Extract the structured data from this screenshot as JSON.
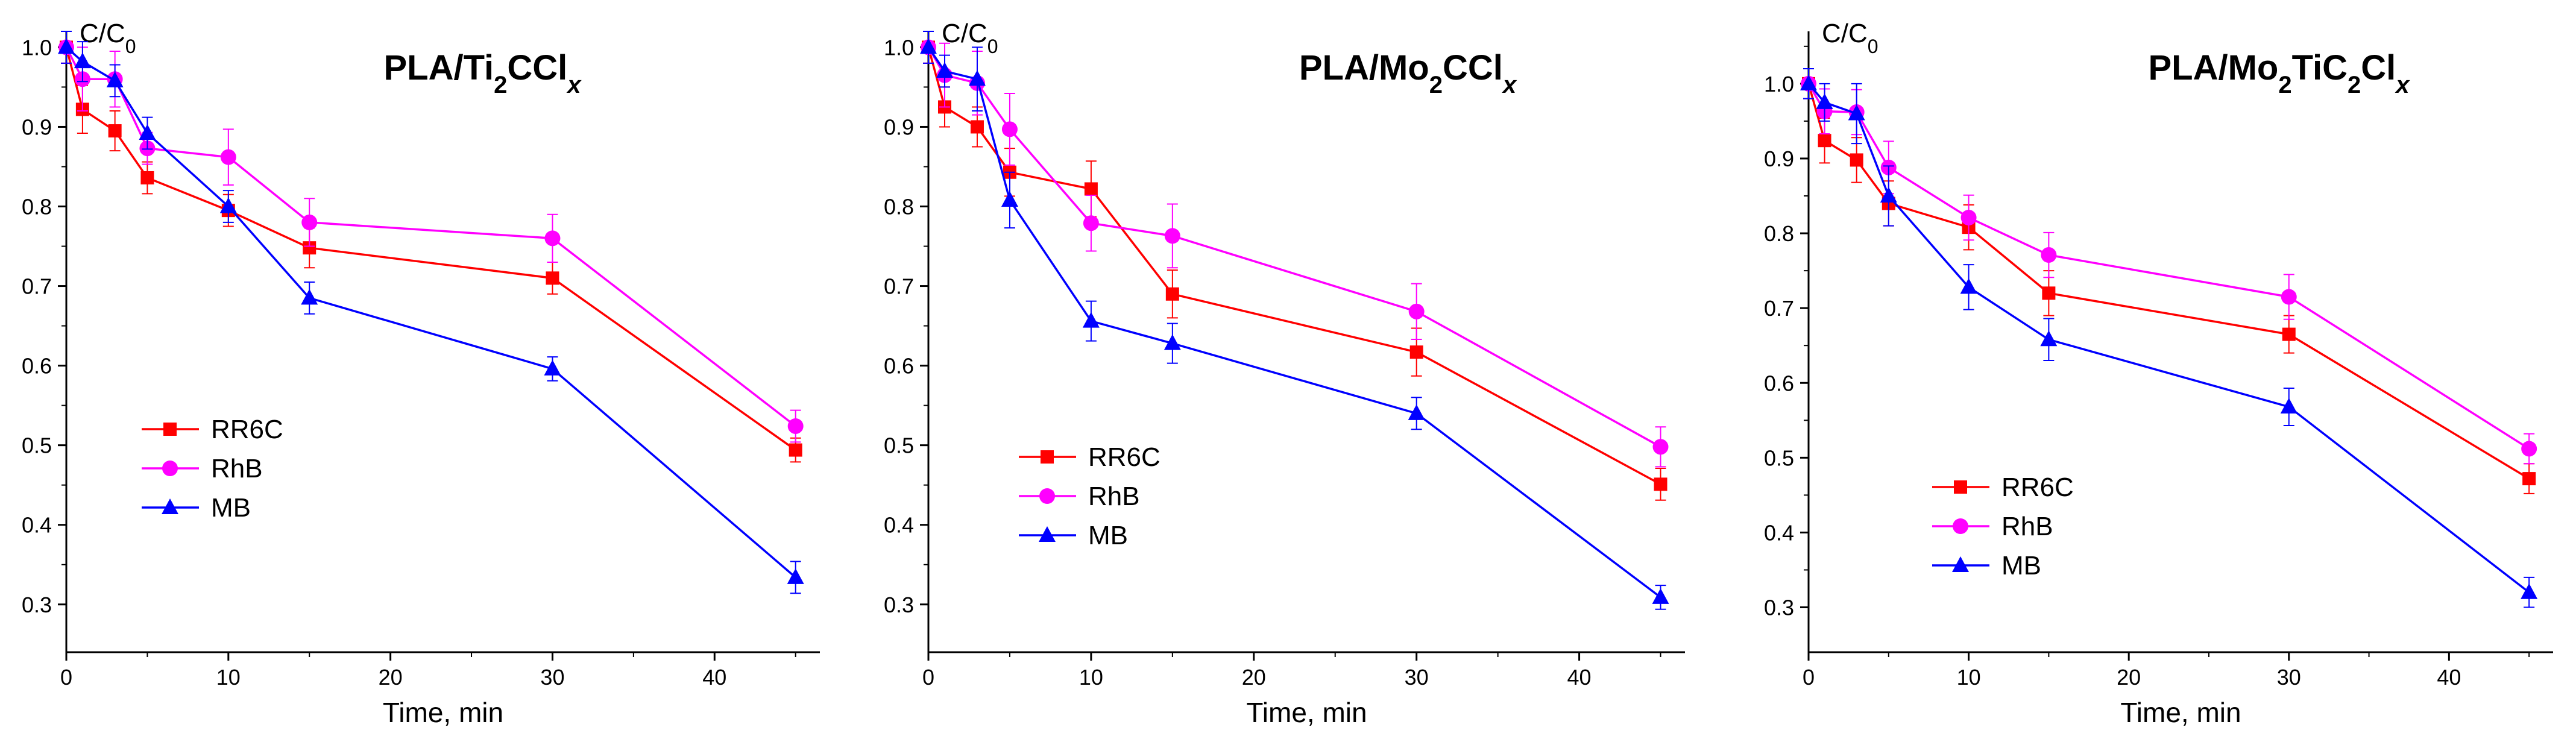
{
  "colors": {
    "RR6C": "#ff0000",
    "RhB": "#ff00ff",
    "MB": "#0000ff",
    "axis": "#000000"
  },
  "chart_data": [
    {
      "type": "line",
      "title": {
        "main": "PLA/Ti",
        "sub1": "2",
        "mid": "CCl",
        "italic": "x"
      },
      "ylabel": {
        "main": "C/C",
        "sub": "0"
      },
      "xlabel": "Time, min",
      "xlim": [
        0,
        46.5
      ],
      "ylim": [
        0.24,
        1.02
      ],
      "xticks": [
        0,
        10,
        20,
        30,
        40
      ],
      "yticks": [
        0.3,
        0.4,
        0.5,
        0.6,
        0.7,
        0.8,
        0.9,
        1.0
      ],
      "ytick_labels": [
        "0.3",
        "0.4",
        "0.5",
        "0.6",
        "0.7",
        "0.8",
        "0.9",
        "1.0"
      ],
      "legend_position": "lower-left",
      "x": [
        0,
        1,
        3,
        5,
        10,
        15,
        30,
        45
      ],
      "series": [
        {
          "name": "RR6C",
          "marker": "square",
          "color": "#ff0000",
          "values": [
            1.0,
            0.922,
            0.895,
            0.836,
            0.795,
            0.748,
            0.71,
            0.494
          ],
          "errors": [
            0.02,
            0.03,
            0.025,
            0.02,
            0.02,
            0.025,
            0.02,
            0.015
          ]
        },
        {
          "name": "RhB",
          "marker": "circle",
          "color": "#ff00ff",
          "values": [
            1.0,
            0.96,
            0.96,
            0.873,
            0.862,
            0.78,
            0.76,
            0.524
          ],
          "errors": [
            0.02,
            0.04,
            0.035,
            0.02,
            0.035,
            0.03,
            0.03,
            0.02
          ]
        },
        {
          "name": "MB",
          "marker": "triangle",
          "color": "#0000ff",
          "values": [
            1.0,
            0.982,
            0.958,
            0.892,
            0.8,
            0.685,
            0.596,
            0.334
          ],
          "errors": [
            0.02,
            0.025,
            0.02,
            0.02,
            0.02,
            0.02,
            0.015,
            0.02
          ]
        }
      ]
    },
    {
      "type": "line",
      "title": {
        "main": "PLA/Mo",
        "sub1": "2",
        "mid": "CCl",
        "italic": "x"
      },
      "ylabel": {
        "main": "C/C",
        "sub": "0"
      },
      "xlabel": "Time, min",
      "xlim": [
        0,
        46.5
      ],
      "ylim": [
        0.24,
        1.02
      ],
      "xticks": [
        0,
        10,
        20,
        30,
        40
      ],
      "yticks": [
        0.3,
        0.4,
        0.5,
        0.6,
        0.7,
        0.8,
        0.9,
        1.0
      ],
      "ytick_labels": [
        "0.3",
        "0.4",
        "0.5",
        "0.6",
        "0.7",
        "0.8",
        "0.9",
        "1.0"
      ],
      "legend_position": "lower-left",
      "x": [
        0,
        1,
        3,
        5,
        10,
        15,
        30,
        45
      ],
      "series": [
        {
          "name": "RR6C",
          "marker": "square",
          "color": "#ff0000",
          "values": [
            1.0,
            0.925,
            0.9,
            0.843,
            0.822,
            0.69,
            0.617,
            0.451
          ],
          "errors": [
            0.02,
            0.025,
            0.025,
            0.03,
            0.035,
            0.03,
            0.03,
            0.02
          ]
        },
        {
          "name": "RhB",
          "marker": "circle",
          "color": "#ff00ff",
          "values": [
            1.0,
            0.965,
            0.955,
            0.897,
            0.779,
            0.763,
            0.668,
            0.498
          ],
          "errors": [
            0.02,
            0.04,
            0.04,
            0.045,
            0.035,
            0.04,
            0.035,
            0.025
          ]
        },
        {
          "name": "MB",
          "marker": "triangle",
          "color": "#0000ff",
          "values": [
            1.0,
            0.97,
            0.96,
            0.808,
            0.656,
            0.628,
            0.54,
            0.309
          ],
          "errors": [
            0.02,
            0.02,
            0.04,
            0.035,
            0.025,
            0.025,
            0.02,
            0.015
          ]
        }
      ]
    },
    {
      "type": "line",
      "title": {
        "main": "PLA/Mo",
        "sub1": "2",
        "mid": "TiC",
        "sub2": "2",
        "tail": "Cl",
        "italic": "x"
      },
      "ylabel": {
        "main": "C/C",
        "sub": "0"
      },
      "xlabel": "Time, min",
      "xlim": [
        0,
        46.5
      ],
      "ylim": [
        0.24,
        1.07
      ],
      "xticks": [
        0,
        10,
        20,
        30,
        40
      ],
      "yticks": [
        0.3,
        0.4,
        0.5,
        0.6,
        0.7,
        0.8,
        0.9,
        1.0
      ],
      "ytick_labels": [
        "0.3",
        "0.4",
        "0.5",
        "0.6",
        "0.7",
        "0.8",
        "0.9",
        "1.0"
      ],
      "legend_position": "lower-left",
      "x": [
        0,
        1,
        3,
        5,
        10,
        15,
        30,
        45
      ],
      "series": [
        {
          "name": "RR6C",
          "marker": "square",
          "color": "#ff0000",
          "values": [
            1.0,
            0.924,
            0.898,
            0.84,
            0.808,
            0.72,
            0.665,
            0.472
          ],
          "errors": [
            0.02,
            0.03,
            0.03,
            0.03,
            0.03,
            0.03,
            0.025,
            0.02
          ]
        },
        {
          "name": "RhB",
          "marker": "circle",
          "color": "#ff00ff",
          "values": [
            1.0,
            0.963,
            0.962,
            0.888,
            0.821,
            0.771,
            0.715,
            0.512
          ],
          "errors": [
            0.02,
            0.03,
            0.03,
            0.035,
            0.03,
            0.03,
            0.03,
            0.02
          ]
        },
        {
          "name": "MB",
          "marker": "triangle",
          "color": "#0000ff",
          "values": [
            1.0,
            0.975,
            0.96,
            0.85,
            0.728,
            0.658,
            0.568,
            0.32
          ],
          "errors": [
            0.02,
            0.025,
            0.04,
            0.04,
            0.03,
            0.028,
            0.025,
            0.02
          ]
        }
      ]
    }
  ]
}
